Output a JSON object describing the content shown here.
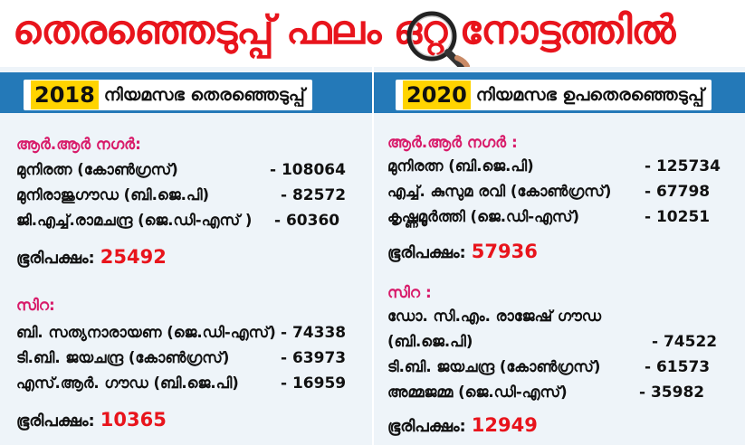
{
  "title": "തെരഞ്ഞെടുപ്പ് ഫലം ഒറ്റ നോട്ടത്തിൽ",
  "colors": {
    "title_red": "#e8141c",
    "header_blue": "#2479b8",
    "panel_bg": "#eef4f9",
    "year_yellow": "#ffd400",
    "section_pink": "#d81b6a"
  },
  "icons": {
    "magnifier": "magnifying-glass-icon"
  },
  "left": {
    "year": "2018",
    "heading": "നിയമസഭ  തെരഞ്ഞെടുപ്പ്",
    "sections": [
      {
        "name": "ആർ.ആർ നഗർ:",
        "rows": [
          {
            "candidate": "മുനിരത്ന (കോൺഗ്രസ്)",
            "votes": "- 108064"
          },
          {
            "candidate": "മുനിരാജുഗൗഡ (ബി.ജെ.പി)",
            "votes": "- 82572"
          },
          {
            "candidate": "ജി.എച്ച്.രാമചന്ദ്ര (ജെ.ഡി-എസ് )",
            "votes": "- 60360"
          }
        ],
        "majority_label": "ഭൂരിപക്ഷം:",
        "majority_value": "25492"
      },
      {
        "name": "സിറ:",
        "rows": [
          {
            "candidate": "ബി. സത്യനാരായണ (ജെ.ഡി-എസ്)",
            "votes": "- 74338"
          },
          {
            "candidate": "ടി.ബി. ജയചന്ദ്ര (കോൺഗ്രസ്)",
            "votes": "- 63973"
          },
          {
            "candidate": "എസ്.ആർ. ഗൗഡ (ബി.ജെ.പി)",
            "votes": "- 16959"
          }
        ],
        "majority_label": "ഭൂരിപക്ഷം:",
        "majority_value": "10365"
      }
    ]
  },
  "right": {
    "year": "2020",
    "heading": "നിയമസഭ ഉപതെരഞ്ഞെടുപ്പ്",
    "sections": [
      {
        "name": "ആർ.ആർ നഗർ :",
        "rows": [
          {
            "candidate": "മുനിരത്ന (ബി.ജെ.പി)",
            "votes": "- 125734"
          },
          {
            "candidate": "എച്ച്. കുസുമ രവി (കോൺഗ്രസ്)",
            "votes": "- 67798"
          },
          {
            "candidate": "കൃഷ്ണമൂർത്തി (ജെ.ഡി-എസ്)",
            "votes": "- 10251"
          }
        ],
        "majority_label": "ഭൂരിപക്ഷം:",
        "majority_value": "57936"
      },
      {
        "name": "സിറ :",
        "rows": [
          {
            "candidate": "ഡോ. സി.എം. രാജേഷ് ഗൗഡ",
            "votes": ""
          },
          {
            "candidate": "(ബി.ജെ.പി)",
            "votes": "- 74522"
          },
          {
            "candidate": "ടി.ബി. ജയചന്ദ്ര (കോൺഗ്രസ്)",
            "votes": "- 61573"
          },
          {
            "candidate": "അമ്മജമ്മ (ജെ.ഡി-എസ്)",
            "votes": "- 35982"
          }
        ],
        "majority_label": "ഭൂരിപക്ഷം:",
        "majority_value": "12949"
      }
    ]
  }
}
